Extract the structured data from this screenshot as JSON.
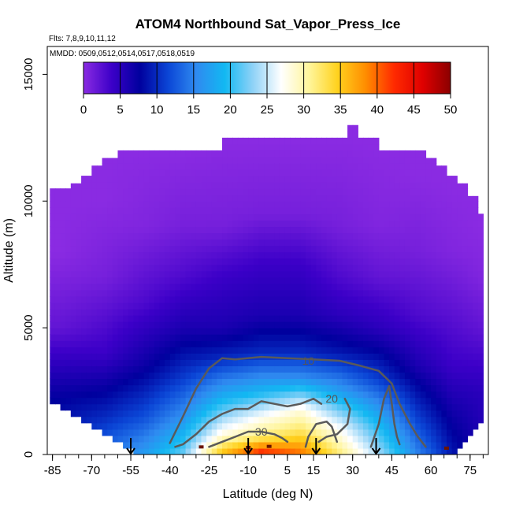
{
  "chart_data": {
    "type": "heatmap",
    "title": "ATOM4 Northbound Sat_Vapor_Press_Ice",
    "subtitle_flights": "Flts: 7,8,9,10,11,12",
    "subtitle_dates": "MMDD: 0509,0512,0514,0517,0518,0519",
    "xlabel": "Latitude (deg N)",
    "ylabel": "Altitude (m)",
    "xlim": [
      -87,
      82
    ],
    "ylim": [
      0,
      16100
    ],
    "x_ticks": [
      -85,
      -70,
      -55,
      -40,
      -25,
      -10,
      5,
      15,
      30,
      45,
      60,
      75
    ],
    "x_tick_labels": [
      "-85",
      "-70",
      "-55",
      "-40",
      "-25",
      "-10",
      "5",
      "15",
      "30",
      "45",
      "60",
      "75"
    ],
    "y_ticks": [
      0,
      5000,
      10000,
      15000
    ],
    "y_tick_labels": [
      "0",
      "5000",
      "10000",
      "15000"
    ],
    "colorbar": {
      "min": 0,
      "max": 50,
      "ticks": [
        0,
        5,
        10,
        15,
        20,
        25,
        30,
        35,
        40,
        45,
        50
      ],
      "tick_labels": [
        "0",
        "5",
        "10",
        "15",
        "20",
        "25",
        "30",
        "35",
        "40",
        "45",
        "50"
      ],
      "colors": [
        "#8a2be2",
        "#3c00c8",
        "#00009e",
        "#0b46d6",
        "#2f8af0",
        "#12b8f2",
        "#8fd2f7",
        "#ffffff",
        "#fff59a",
        "#ffd21e",
        "#ff8c00",
        "#ff2a00",
        "#e00000",
        "#8b0000"
      ]
    },
    "grid": false,
    "legend": "colorbar-top",
    "column_top_altitude": [
      [
        -86,
        10500
      ],
      [
        -82,
        10500
      ],
      [
        -78,
        10700
      ],
      [
        -74,
        11000
      ],
      [
        -70,
        11400
      ],
      [
        -66,
        11700
      ],
      [
        -60,
        12000
      ],
      [
        -50,
        12000
      ],
      [
        -40,
        12000
      ],
      [
        -30,
        12000
      ],
      [
        -25,
        12000
      ],
      [
        -20,
        12500
      ],
      [
        -10,
        12500
      ],
      [
        0,
        12500
      ],
      [
        10,
        12500
      ],
      [
        15,
        12500
      ],
      [
        20,
        12500
      ],
      [
        25,
        12500
      ],
      [
        28,
        13000
      ],
      [
        32,
        12500
      ],
      [
        40,
        12000
      ],
      [
        50,
        12000
      ],
      [
        58,
        11700
      ],
      [
        62,
        11400
      ],
      [
        66,
        11000
      ],
      [
        70,
        10700
      ],
      [
        74,
        10200
      ],
      [
        78,
        9500
      ],
      [
        80,
        9000
      ]
    ],
    "profile_bands": [
      {
        "lat": -82,
        "base": 2000,
        "lo": [
          [
            0,
            10
          ],
          [
            2000,
            8
          ],
          [
            5000,
            2
          ],
          [
            8000,
            0
          ]
        ]
      },
      {
        "lat": -65,
        "base": 900,
        "lo": [
          [
            0,
            14
          ],
          [
            1500,
            10
          ],
          [
            4000,
            4
          ],
          [
            7000,
            1
          ],
          [
            10000,
            0
          ]
        ]
      },
      {
        "lat": -50,
        "base": 0,
        "lo": [
          [
            0,
            17
          ],
          [
            1500,
            12
          ],
          [
            3500,
            7
          ],
          [
            6000,
            3
          ],
          [
            9000,
            0.5
          ],
          [
            12000,
            0
          ]
        ]
      },
      {
        "lat": -35,
        "base": 0,
        "lo": [
          [
            0,
            22
          ],
          [
            1500,
            16
          ],
          [
            3000,
            11
          ],
          [
            5000,
            6
          ],
          [
            7000,
            3
          ],
          [
            9000,
            1
          ],
          [
            12000,
            0
          ]
        ]
      },
      {
        "lat": -20,
        "base": 0,
        "lo": [
          [
            0,
            36
          ],
          [
            800,
            28
          ],
          [
            2000,
            20
          ],
          [
            3800,
            10
          ],
          [
            5000,
            6
          ],
          [
            7000,
            4
          ],
          [
            9000,
            1
          ],
          [
            12500,
            0
          ]
        ]
      },
      {
        "lat": -5,
        "base": 0,
        "lo": [
          [
            0,
            44
          ],
          [
            700,
            32
          ],
          [
            1500,
            27
          ],
          [
            2500,
            19
          ],
          [
            4000,
            10
          ],
          [
            5500,
            6
          ],
          [
            7500,
            4
          ],
          [
            9500,
            1
          ],
          [
            12500,
            0
          ]
        ]
      },
      {
        "lat": 10,
        "base": 0,
        "lo": [
          [
            0,
            40
          ],
          [
            900,
            33
          ],
          [
            1800,
            28
          ],
          [
            3000,
            16
          ],
          [
            4000,
            10
          ],
          [
            5500,
            6
          ],
          [
            7500,
            4
          ],
          [
            9500,
            1
          ],
          [
            12500,
            0
          ]
        ]
      },
      {
        "lat": 25,
        "base": 0,
        "lo": [
          [
            0,
            32
          ],
          [
            1200,
            26
          ],
          [
            2500,
            17
          ],
          [
            4000,
            9
          ],
          [
            5500,
            5
          ],
          [
            7000,
            3
          ],
          [
            9000,
            1
          ],
          [
            12500,
            0
          ]
        ]
      },
      {
        "lat": 40,
        "base": 0,
        "lo": [
          [
            0,
            24
          ],
          [
            1500,
            18
          ],
          [
            3000,
            11
          ],
          [
            5000,
            5
          ],
          [
            7000,
            2
          ],
          [
            9000,
            0.5
          ],
          [
            12000,
            0
          ]
        ]
      },
      {
        "lat": 55,
        "base": 0,
        "lo": [
          [
            0,
            15
          ],
          [
            1500,
            11
          ],
          [
            3500,
            6
          ],
          [
            5500,
            3
          ],
          [
            8000,
            1
          ],
          [
            11000,
            0
          ]
        ]
      },
      {
        "lat": 68,
        "base": 0,
        "lo": [
          [
            0,
            9
          ],
          [
            1500,
            7
          ],
          [
            3500,
            4
          ],
          [
            6000,
            2
          ],
          [
            8000,
            0.5
          ],
          [
            10500,
            0
          ]
        ]
      },
      {
        "lat": 80,
        "base": 1500,
        "lo": [
          [
            0,
            6
          ],
          [
            2500,
            5
          ],
          [
            5000,
            2
          ],
          [
            7000,
            0.5
          ],
          [
            9000,
            0
          ]
        ]
      }
    ],
    "contours": [
      {
        "level": 10,
        "label": "10",
        "label_at": [
          13,
          3700
        ],
        "points": [
          [
            -40,
            450
          ],
          [
            -35,
            1500
          ],
          [
            -30,
            2600
          ],
          [
            -25,
            3400
          ],
          [
            -20,
            3800
          ],
          [
            -15,
            3750
          ],
          [
            -5,
            3850
          ],
          [
            5,
            3800
          ],
          [
            15,
            3750
          ],
          [
            25,
            3700
          ],
          [
            33,
            3500
          ],
          [
            40,
            3300
          ],
          [
            45,
            2800
          ],
          [
            48,
            2000
          ],
          [
            52,
            1200
          ],
          [
            55,
            700
          ],
          [
            58,
            300
          ]
        ]
      },
      {
        "level": 20,
        "label": "20",
        "label_at": [
          22,
          2200
        ],
        "points": [
          [
            -38,
            300
          ],
          [
            -35,
            400
          ],
          [
            -30,
            800
          ],
          [
            -25,
            1300
          ],
          [
            -20,
            1600
          ],
          [
            -15,
            1800
          ],
          [
            -10,
            1800
          ],
          [
            -5,
            2100
          ],
          [
            0,
            2000
          ],
          [
            5,
            1900
          ],
          [
            10,
            2000
          ],
          [
            15,
            2200
          ],
          [
            18,
            2000
          ]
        ]
      },
      {
        "level": 20,
        "label": "",
        "label_at": [
          0,
          0
        ],
        "points": [
          [
            27,
            2200
          ],
          [
            29,
            1800
          ],
          [
            28,
            1200
          ],
          [
            24,
            800
          ],
          [
            20,
            700
          ],
          [
            17,
            500
          ]
        ]
      },
      {
        "level": 20,
        "label": "",
        "label_at": [
          0,
          0
        ],
        "points": [
          [
            37,
            300
          ],
          [
            40,
            1200
          ],
          [
            42,
            2200
          ],
          [
            44,
            2700
          ],
          [
            45,
            2000
          ],
          [
            46,
            1200
          ],
          [
            47,
            700
          ],
          [
            48,
            400
          ]
        ]
      },
      {
        "level": 30,
        "label": "30",
        "label_at": [
          -5,
          900
        ],
        "points": [
          [
            -25,
            300
          ],
          [
            -20,
            500
          ],
          [
            -15,
            700
          ],
          [
            -10,
            900
          ],
          [
            -5,
            900
          ],
          [
            0,
            800
          ],
          [
            3,
            650
          ],
          [
            5,
            500
          ]
        ]
      },
      {
        "level": 30,
        "label": "",
        "label_at": [
          0,
          0
        ],
        "points": [
          [
            12,
            300
          ],
          [
            13,
            700
          ],
          [
            16,
            1200
          ],
          [
            20,
            1300
          ],
          [
            22,
            1100
          ],
          [
            23,
            800
          ],
          [
            24,
            500
          ]
        ]
      }
    ],
    "flight_markers_lat": [
      -55,
      -10,
      16,
      39
    ],
    "dark_marks": [
      [
        -28,
        300
      ],
      [
        -10,
        280
      ],
      [
        -2,
        320
      ],
      [
        66,
        250
      ]
    ]
  }
}
